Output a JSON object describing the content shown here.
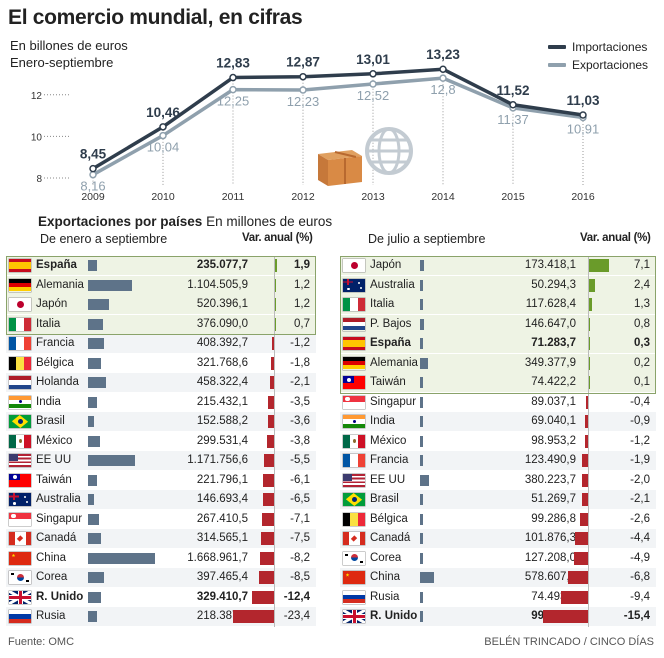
{
  "title": "El comercio mundial, en cifras",
  "subtitle1": "En billones de euros",
  "subtitle2": "Enero-septiembre",
  "legend": {
    "imports": "Importaciones",
    "exports": "Exportaciones"
  },
  "colors": {
    "imports": "#2f3d4c",
    "exports": "#8fa0ad",
    "positive": "#6a9b2a",
    "negative": "#b3262d",
    "valuebar": "#5e7389",
    "highlight": "#eef3e4"
  },
  "chart_data": {
    "type": "line",
    "x": [
      "2009",
      "2010",
      "2011",
      "2012",
      "2013",
      "2014",
      "2015",
      "2016"
    ],
    "yticks": [
      "8",
      "10",
      "12"
    ],
    "ylim": [
      8,
      13.5
    ],
    "series": [
      {
        "name": "Importaciones",
        "values": [
          8.45,
          10.46,
          12.83,
          12.87,
          13.01,
          13.23,
          11.52,
          11.03
        ],
        "labels": [
          "8,45",
          "10,46",
          "12,83",
          "12,87",
          "13,01",
          "13,23",
          "11,52",
          "11,03"
        ]
      },
      {
        "name": "Exportaciones",
        "values": [
          8.16,
          10.04,
          12.25,
          12.23,
          12.52,
          12.8,
          11.37,
          10.91
        ],
        "labels": [
          "8,16",
          "10,04",
          "12,25",
          "12,23",
          "12,52",
          "12,8",
          "11,37",
          "10,91"
        ]
      }
    ]
  },
  "section": {
    "title_bold": "Exportaciones por países",
    "title_rest": "En millones de euros"
  },
  "left": {
    "header": "De enero a septiembre",
    "var_header": "Var. anual (%)",
    "rows": [
      {
        "name": "España",
        "value": 235077.7,
        "value_label": "235.077,7",
        "var": 1.9,
        "var_label": "1,9",
        "flag": "es",
        "bold": true,
        "hl": true
      },
      {
        "name": "Alemania",
        "value": 1104505.9,
        "value_label": "1.104.505,9",
        "var": 1.2,
        "var_label": "1,2",
        "flag": "de",
        "hl": true
      },
      {
        "name": "Japón",
        "value": 520396.1,
        "value_label": "520.396,1",
        "var": 1.2,
        "var_label": "1,2",
        "flag": "jp",
        "hl": true
      },
      {
        "name": "Italia",
        "value": 376090.0,
        "value_label": "376.090,0",
        "var": 0.7,
        "var_label": "0,7",
        "flag": "it",
        "hl": true
      },
      {
        "name": "Francia",
        "value": 408392.7,
        "value_label": "408.392,7",
        "var": -1.2,
        "var_label": "-1,2",
        "flag": "fr"
      },
      {
        "name": "Bélgica",
        "value": 321768.6,
        "value_label": "321.768,6",
        "var": -1.8,
        "var_label": "-1,8",
        "flag": "be"
      },
      {
        "name": "Holanda",
        "value": 458322.4,
        "value_label": "458.322,4",
        "var": -2.1,
        "var_label": "-2,1",
        "flag": "nl"
      },
      {
        "name": "India",
        "value": 215432.1,
        "value_label": "215.432,1",
        "var": -3.5,
        "var_label": "-3,5",
        "flag": "in"
      },
      {
        "name": "Brasil",
        "value": 152588.2,
        "value_label": "152.588,2",
        "var": -3.6,
        "var_label": "-3,6",
        "flag": "br"
      },
      {
        "name": "México",
        "value": 299531.4,
        "value_label": "299.531,4",
        "var": -3.8,
        "var_label": "-3,8",
        "flag": "mx"
      },
      {
        "name": "EE UU",
        "value": 1171756.6,
        "value_label": "1.171.756,6",
        "var": -5.5,
        "var_label": "-5,5",
        "flag": "us"
      },
      {
        "name": "Taiwán",
        "value": 221796.1,
        "value_label": "221.796,1",
        "var": -6.1,
        "var_label": "-6,1",
        "flag": "tw"
      },
      {
        "name": "Australia",
        "value": 146693.4,
        "value_label": "146.693,4",
        "var": -6.5,
        "var_label": "-6,5",
        "flag": "au"
      },
      {
        "name": "Singapur",
        "value": 267410.5,
        "value_label": "267.410,5",
        "var": -7.1,
        "var_label": "-7,1",
        "flag": "sg"
      },
      {
        "name": "Canadá",
        "value": 314565.1,
        "value_label": "314.565,1",
        "var": -7.5,
        "var_label": "-7,5",
        "flag": "ca"
      },
      {
        "name": "China",
        "value": 1668961.7,
        "value_label": "1.668.961,7",
        "var": -8.2,
        "var_label": "-8,2",
        "flag": "cn"
      },
      {
        "name": "Corea",
        "value": 397465.4,
        "value_label": "397.465,4",
        "var": -8.5,
        "var_label": "-8,5",
        "flag": "kr"
      },
      {
        "name": "R. Unido",
        "value": 329410.7,
        "value_label": "329.410,7",
        "var": -12.4,
        "var_label": "-12,4",
        "flag": "gb",
        "bold": true
      },
      {
        "name": "Rusia",
        "value": 218387.8,
        "value_label": "218.387,8",
        "var": -23.4,
        "var_label": "-23,4",
        "flag": "ru"
      }
    ]
  },
  "right": {
    "header": "De julio a septiembre",
    "var_header": "Var. anual (%)",
    "rows": [
      {
        "name": "Japón",
        "value": 173418.1,
        "value_label": "173.418,1",
        "var": 7.1,
        "var_label": "7,1",
        "flag": "jp",
        "hl": true
      },
      {
        "name": "Australia",
        "value": 50294.3,
        "value_label": "50.294,3",
        "var": 2.4,
        "var_label": "2,4",
        "flag": "au",
        "hl": true
      },
      {
        "name": "Italia",
        "value": 117628.4,
        "value_label": "117.628,4",
        "var": 1.3,
        "var_label": "1,3",
        "flag": "it",
        "hl": true
      },
      {
        "name": "P. Bajos",
        "value": 146647.0,
        "value_label": "146.647,0",
        "var": 0.8,
        "var_label": "0,8",
        "flag": "nl",
        "hl": true
      },
      {
        "name": "España",
        "value": 71283.7,
        "value_label": "71.283,7",
        "var": 0.3,
        "var_label": "0,3",
        "flag": "es",
        "bold": true,
        "hl": true
      },
      {
        "name": "Alemania",
        "value": 349377.9,
        "value_label": "349.377,9",
        "var": 0.2,
        "var_label": "0,2",
        "flag": "de",
        "hl": true
      },
      {
        "name": "Taiwán",
        "value": 74422.2,
        "value_label": "74.422,2",
        "var": 0.1,
        "var_label": "0,1",
        "flag": "tw",
        "hl": true
      },
      {
        "name": "Singapur",
        "value": 89037.1,
        "value_label": "89.037,1",
        "var": -0.4,
        "var_label": "-0,4",
        "flag": "sg"
      },
      {
        "name": "India",
        "value": 69040.1,
        "value_label": "69.040,1",
        "var": -0.9,
        "var_label": "-0,9",
        "flag": "in"
      },
      {
        "name": "México",
        "value": 98953.2,
        "value_label": "98.953,2",
        "var": -1.2,
        "var_label": "-1,2",
        "flag": "mx"
      },
      {
        "name": "Francia",
        "value": 123490.9,
        "value_label": "123.490,9",
        "var": -1.9,
        "var_label": "-1,9",
        "flag": "fr"
      },
      {
        "name": "EE UU",
        "value": 380223.7,
        "value_label": "380.223,7",
        "var": -2.0,
        "var_label": "-2,0",
        "flag": "us"
      },
      {
        "name": "Brasil",
        "value": 51269.7,
        "value_label": "51.269,7",
        "var": -2.1,
        "var_label": "-2,1",
        "flag": "br"
      },
      {
        "name": "Bélgica",
        "value": 99286.8,
        "value_label": "99.286,8",
        "var": -2.6,
        "var_label": "-2,6",
        "flag": "be"
      },
      {
        "name": "Canadá",
        "value": 101876.3,
        "value_label": "101.876,3",
        "var": -4.4,
        "var_label": "-4,4",
        "flag": "ca"
      },
      {
        "name": "Corea",
        "value": 127208.0,
        "value_label": "127.208,0",
        "var": -4.9,
        "var_label": "-4,9",
        "flag": "kr"
      },
      {
        "name": "China",
        "value": 578607.7,
        "value_label": "578.607,7",
        "var": -6.8,
        "var_label": "-6,8",
        "flag": "cn"
      },
      {
        "name": "Rusia",
        "value": 74493.3,
        "value_label": "74.493,3",
        "var": -9.4,
        "var_label": "-9,4",
        "flag": "ru"
      },
      {
        "name": "R. Unido",
        "value": 99833.2,
        "value_label": "99.833,2",
        "var": -15.4,
        "var_label": "-15,4",
        "flag": "gb",
        "bold": true
      }
    ]
  },
  "source": "Fuente: OMC",
  "credit": "BELÉN TRINCADO / CINCO DÍAS"
}
